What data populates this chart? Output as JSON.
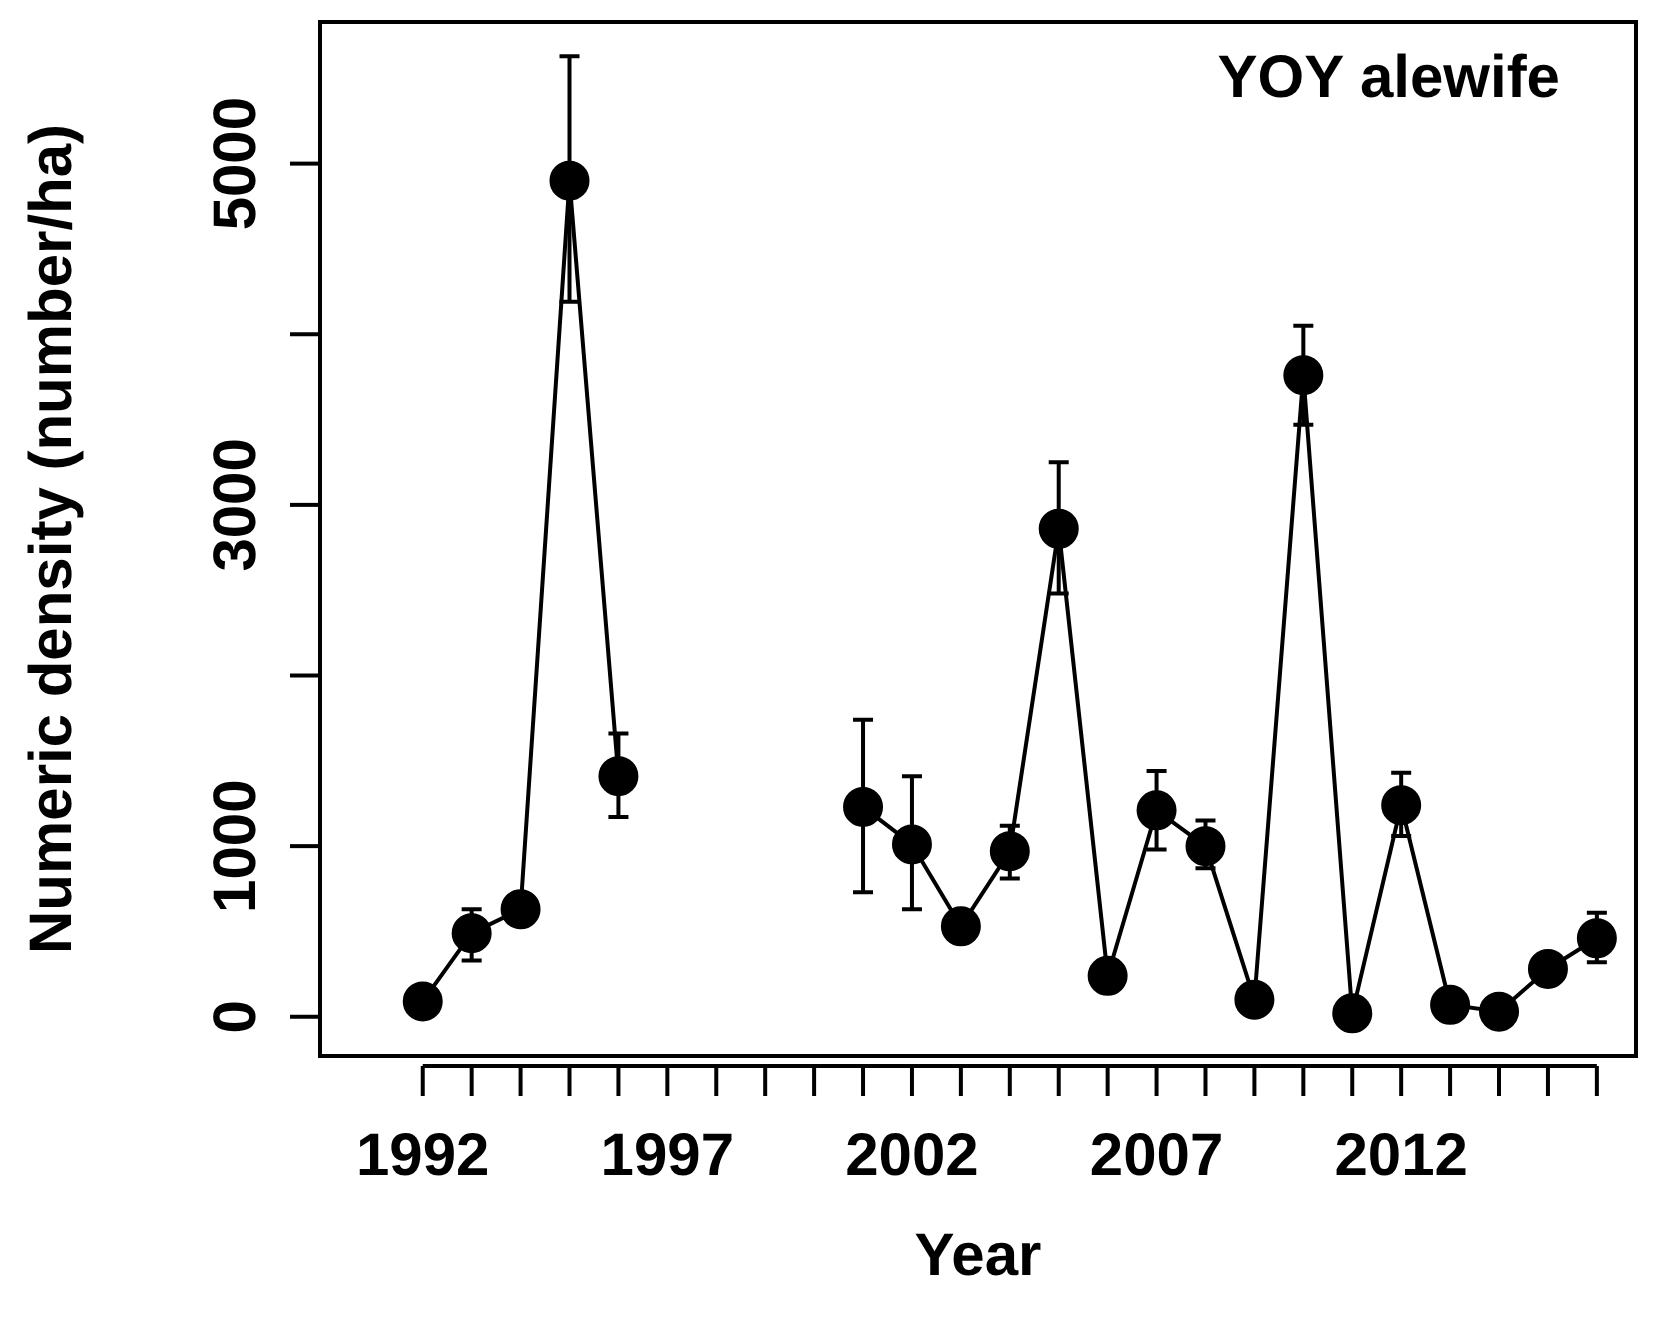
{
  "chart_data": {
    "type": "line",
    "title": "YOY alewife",
    "xlabel": "Year",
    "ylabel": "Numeric density (number/ha)",
    "x": [
      1992,
      1993,
      1994,
      1995,
      1996,
      1997,
      1998,
      1999,
      2000,
      2001,
      2002,
      2003,
      2004,
      2005,
      2006,
      2007,
      2008,
      2009,
      2010,
      2011,
      2012,
      2013,
      2014,
      2015,
      2016
    ],
    "series": [
      {
        "color": "#000000",
        "values": [
          90,
          490,
          630,
          4900,
          1410,
          null,
          null,
          null,
          null,
          1230,
          1010,
          530,
          970,
          2860,
          240,
          1210,
          1000,
          100,
          3760,
          20,
          1240,
          70,
          30,
          280,
          460
        ],
        "errors": [
          null,
          [
            330,
            630
          ],
          null,
          [
            4190,
            5630
          ],
          [
            1170,
            1660
          ],
          null,
          null,
          null,
          null,
          [
            730,
            1740
          ],
          [
            630,
            1410
          ],
          null,
          [
            810,
            1120
          ],
          [
            2480,
            3250
          ],
          null,
          [
            980,
            1440
          ],
          [
            870,
            1150
          ],
          null,
          [
            3470,
            4050
          ],
          null,
          [
            1060,
            1430
          ],
          null,
          null,
          null,
          [
            320,
            610
          ]
        ]
      }
    ],
    "xlim": [
      1989.9,
      2016.8
    ],
    "xticks": [
      1992,
      {
        "value": 1993,
        "label": null
      },
      {
        "value": 1994,
        "label": null
      },
      {
        "value": 1995,
        "label": null
      },
      {
        "value": 1996,
        "label": null
      },
      1997,
      {
        "value": 1998,
        "label": null
      },
      {
        "value": 1999,
        "label": null
      },
      {
        "value": 2000,
        "label": null
      },
      {
        "value": 2001,
        "label": null
      },
      2002,
      {
        "value": 2003,
        "label": null
      },
      {
        "value": 2004,
        "label": null
      },
      {
        "value": 2005,
        "label": null
      },
      {
        "value": 2006,
        "label": null
      },
      2007,
      {
        "value": 2008,
        "label": null
      },
      {
        "value": 2009,
        "label": null
      },
      {
        "value": 2010,
        "label": null
      },
      {
        "value": 2011,
        "label": null
      },
      2012,
      {
        "value": 2013,
        "label": null
      },
      {
        "value": 2014,
        "label": null
      },
      {
        "value": 2015,
        "label": null
      },
      {
        "value": 2016,
        "label": null
      }
    ],
    "ylim": [
      -230,
      5830
    ],
    "yticks": [
      0,
      1000,
      {
        "value": 2000,
        "label": null
      },
      3000,
      {
        "value": 4000,
        "label": null
      },
      5000
    ],
    "marker": "circle",
    "line_style": "solid",
    "legend": false,
    "grid": false
  }
}
